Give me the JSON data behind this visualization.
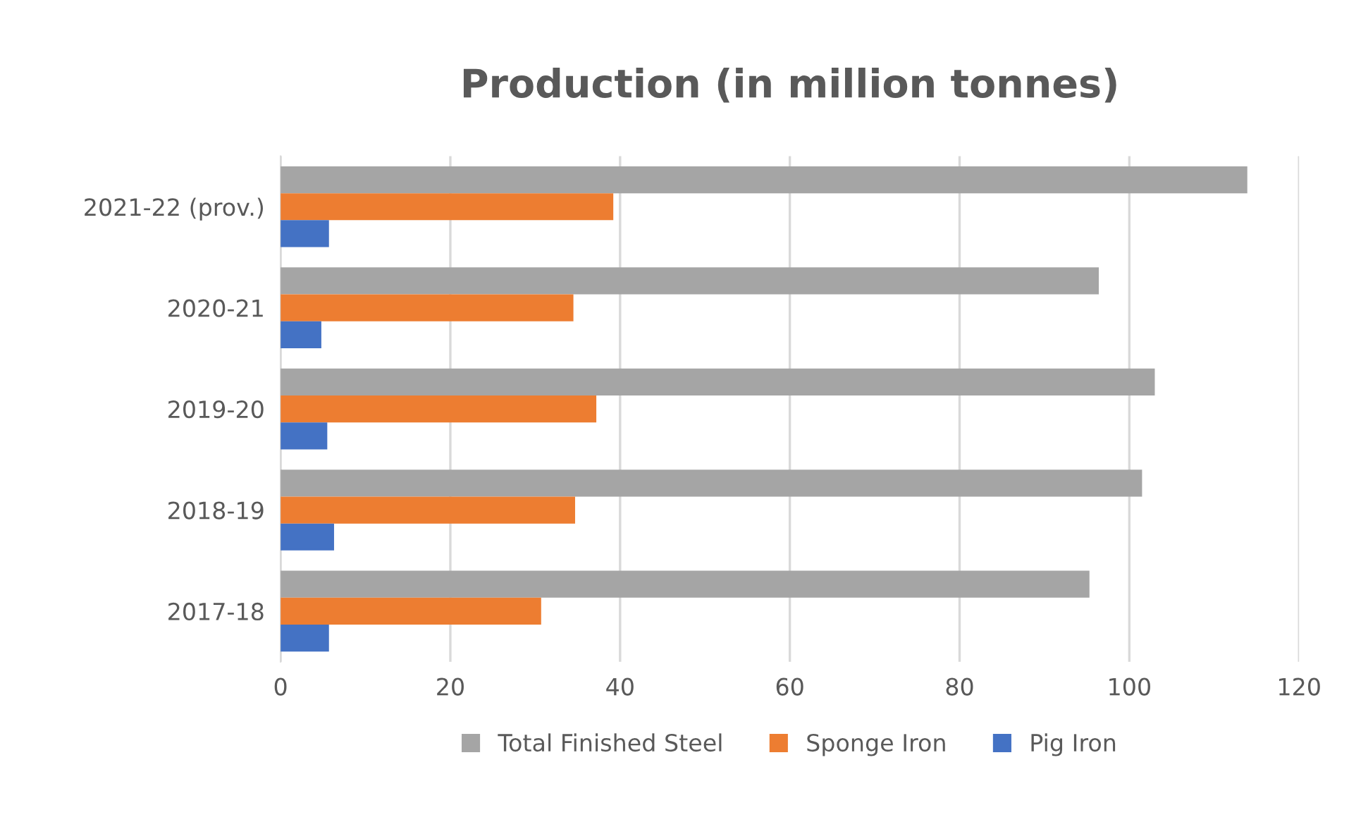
{
  "chart_data": {
    "type": "bar",
    "orientation": "horizontal",
    "title": "Production (in million tonnes)",
    "categories": [
      "2021-22 (prov.)",
      "2020-21",
      "2019-20",
      "2018-19",
      "2017-18"
    ],
    "series": [
      {
        "name": "Total Finished Steel",
        "color": "#a5a5a5",
        "values": [
          113.9,
          96.4,
          103.0,
          101.5,
          95.3
        ]
      },
      {
        "name": "Sponge Iron",
        "color": "#ed7d31",
        "values": [
          39.2,
          34.5,
          37.2,
          34.7,
          30.7
        ]
      },
      {
        "name": "Pig Iron",
        "color": "#4472c4",
        "values": [
          5.7,
          4.8,
          5.5,
          6.3,
          5.7
        ]
      }
    ],
    "xlim": [
      0,
      120
    ],
    "xticks": [
      0,
      20,
      40,
      60,
      80,
      100,
      120
    ],
    "grid": "x",
    "legend": "bottom"
  }
}
